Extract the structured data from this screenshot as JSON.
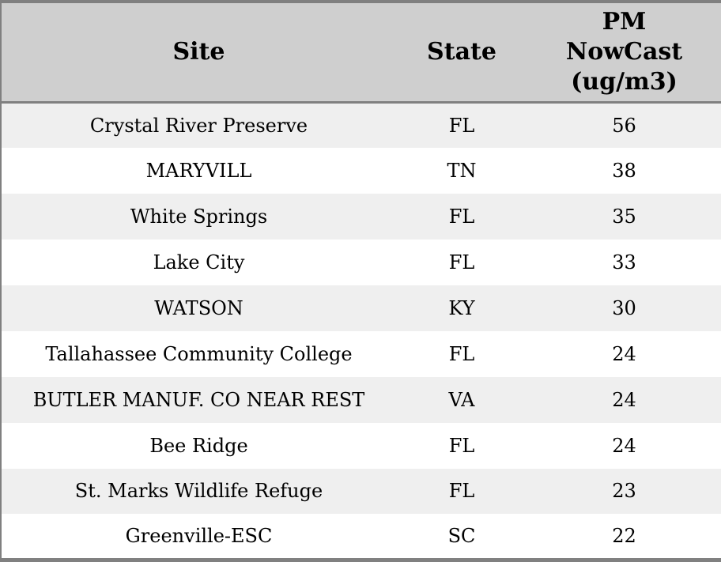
{
  "chart_data": {
    "type": "table",
    "title": "",
    "columns": [
      "Site",
      "State",
      "PM NowCast (ug/m3)"
    ],
    "rows": [
      [
        "Crystal River Preserve",
        "FL",
        56
      ],
      [
        "MARYVILL",
        "TN",
        38
      ],
      [
        "White Springs",
        "FL",
        35
      ],
      [
        "Lake City",
        "FL",
        33
      ],
      [
        "WATSON",
        "KY",
        30
      ],
      [
        "Tallahassee Community College",
        "FL",
        24
      ],
      [
        "BUTLER MANUF. CO NEAR REST",
        "VA",
        24
      ],
      [
        "Bee Ridge",
        "FL",
        24
      ],
      [
        "St. Marks Wildlife Refuge",
        "FL",
        23
      ],
      [
        "Greenville-ESC",
        "SC",
        22
      ]
    ],
    "layout": {
      "grid": "horizontal-stripes-only",
      "row_alternation": "odd rows shaded",
      "alignment": "all cells centered"
    }
  },
  "colors": {
    "header_bg": "#cfcfcf",
    "row_alt_bg": "#efefef",
    "row_bg": "#ffffff",
    "border": "#808080",
    "text": "#000000"
  }
}
